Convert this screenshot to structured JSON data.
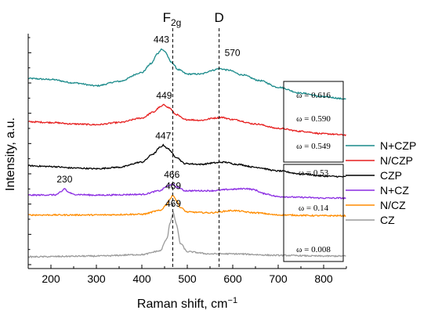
{
  "chart_data": {
    "type": "line",
    "title": "",
    "xlabel": "Raman shift, cm",
    "xlabel_sup": "−1",
    "ylabel": "Intensity, a.u.",
    "xlim": [
      150,
      850
    ],
    "x_ticks": [
      "200",
      "300",
      "400",
      "500",
      "600",
      "700",
      "800"
    ],
    "y_ticks_shown": false,
    "grid": false,
    "legend_position": "right",
    "reference_lines": [
      {
        "x": 468,
        "label_main": "F",
        "label_sub": "2g"
      },
      {
        "x": 570,
        "label_main": "D",
        "label_sub": ""
      }
    ],
    "series": [
      {
        "name": "N+CZP",
        "color": "#1a8a8a",
        "omega": "ω = 0.616",
        "baseline": 12.0,
        "points": [
          [
            150,
            0.15
          ],
          [
            200,
            0.08
          ],
          [
            250,
            -0.15
          ],
          [
            300,
            -0.35
          ],
          [
            350,
            -0.05
          ],
          [
            400,
            0.55
          ],
          [
            420,
            1.15
          ],
          [
            435,
            1.85
          ],
          [
            443,
            2.15
          ],
          [
            450,
            2.0
          ],
          [
            465,
            1.25
          ],
          [
            480,
            0.75
          ],
          [
            500,
            0.45
          ],
          [
            530,
            0.45
          ],
          [
            555,
            0.7
          ],
          [
            570,
            0.82
          ],
          [
            590,
            0.72
          ],
          [
            620,
            0.4
          ],
          [
            660,
            0.0
          ],
          [
            700,
            -0.45
          ],
          [
            750,
            -0.85
          ],
          [
            800,
            -1.1
          ],
          [
            850,
            -1.25
          ]
        ],
        "peaks": [
          {
            "x": 443,
            "label": "443"
          },
          {
            "x": 570,
            "label": "570"
          }
        ]
      },
      {
        "name": "N/CZP",
        "color": "#e61e1e",
        "omega": "ω = 0.590",
        "baseline": 9.0,
        "points": [
          [
            150,
            0.2
          ],
          [
            200,
            0.15
          ],
          [
            250,
            0.05
          ],
          [
            300,
            0.0
          ],
          [
            350,
            0.15
          ],
          [
            400,
            0.45
          ],
          [
            425,
            0.85
          ],
          [
            440,
            1.2
          ],
          [
            449,
            1.35
          ],
          [
            460,
            1.15
          ],
          [
            475,
            0.7
          ],
          [
            495,
            0.35
          ],
          [
            530,
            0.3
          ],
          [
            560,
            0.45
          ],
          [
            575,
            0.5
          ],
          [
            600,
            0.35
          ],
          [
            650,
            0.05
          ],
          [
            700,
            -0.25
          ],
          [
            750,
            -0.45
          ],
          [
            800,
            -0.62
          ],
          [
            850,
            -0.7
          ]
        ],
        "peaks": [
          {
            "x": 449,
            "label": "449"
          }
        ]
      },
      {
        "name": "CZP",
        "color": "#000000",
        "omega": "ω = 0.549",
        "baseline": 6.0,
        "points": [
          [
            150,
            0.2
          ],
          [
            200,
            0.15
          ],
          [
            250,
            0.05
          ],
          [
            300,
            0.0
          ],
          [
            350,
            0.1
          ],
          [
            400,
            0.45
          ],
          [
            425,
            1.0
          ],
          [
            440,
            1.45
          ],
          [
            447,
            1.6
          ],
          [
            458,
            1.35
          ],
          [
            475,
            0.8
          ],
          [
            495,
            0.35
          ],
          [
            530,
            0.3
          ],
          [
            560,
            0.4
          ],
          [
            580,
            0.45
          ],
          [
            610,
            0.3
          ],
          [
            650,
            0.1
          ],
          [
            700,
            -0.15
          ],
          [
            750,
            -0.35
          ],
          [
            800,
            -0.5
          ],
          [
            850,
            -0.55
          ]
        ],
        "peaks": [
          {
            "x": 447,
            "label": "447"
          }
        ]
      },
      {
        "name": "N+CZ",
        "color": "#8a2be2",
        "omega": "ω = 0.53",
        "baseline": 4.2,
        "points": [
          [
            150,
            0.0
          ],
          [
            210,
            0.02
          ],
          [
            222,
            0.2
          ],
          [
            230,
            0.45
          ],
          [
            238,
            0.2
          ],
          [
            250,
            0.05
          ],
          [
            300,
            0.0
          ],
          [
            400,
            0.05
          ],
          [
            440,
            0.3
          ],
          [
            455,
            0.6
          ],
          [
            466,
            0.75
          ],
          [
            478,
            0.55
          ],
          [
            495,
            0.3
          ],
          [
            550,
            0.3
          ],
          [
            600,
            0.4
          ],
          [
            630,
            0.45
          ],
          [
            645,
            0.38
          ],
          [
            670,
            0.1
          ],
          [
            700,
            -0.1
          ],
          [
            750,
            -0.15
          ],
          [
            800,
            -0.2
          ],
          [
            850,
            -0.2
          ]
        ],
        "peaks": [
          {
            "x": 230,
            "label": "230"
          },
          {
            "x": 466,
            "label": "466"
          }
        ]
      },
      {
        "name": "N/CZ",
        "color": "#ff8c00",
        "omega": "ω = 0.14",
        "baseline": 2.85,
        "points": [
          [
            150,
            0.0
          ],
          [
            300,
            0.0
          ],
          [
            400,
            0.05
          ],
          [
            440,
            0.3
          ],
          [
            455,
            0.7
          ],
          [
            462,
            1.1
          ],
          [
            469,
            1.35
          ],
          [
            476,
            1.0
          ],
          [
            485,
            0.5
          ],
          [
            500,
            0.2
          ],
          [
            550,
            0.15
          ],
          [
            600,
            0.3
          ],
          [
            650,
            0.15
          ],
          [
            700,
            0.0
          ],
          [
            800,
            -0.05
          ],
          [
            850,
            -0.05
          ]
        ],
        "peaks": [
          {
            "x": 469,
            "label": "469"
          }
        ]
      },
      {
        "name": "CZ",
        "color": "#9a9a9a",
        "omega": "ω = 0.008",
        "baseline": 0.0,
        "points": [
          [
            150,
            0.0
          ],
          [
            300,
            0.05
          ],
          [
            400,
            0.15
          ],
          [
            440,
            0.4
          ],
          [
            455,
            1.2
          ],
          [
            462,
            2.3
          ],
          [
            469,
            3.0
          ],
          [
            476,
            2.2
          ],
          [
            485,
            0.9
          ],
          [
            500,
            0.35
          ],
          [
            550,
            0.2
          ],
          [
            600,
            0.2
          ],
          [
            700,
            0.1
          ],
          [
            800,
            0.05
          ],
          [
            850,
            0.05
          ]
        ],
        "peaks": [
          {
            "x": 469,
            "label": "469"
          }
        ]
      }
    ]
  }
}
